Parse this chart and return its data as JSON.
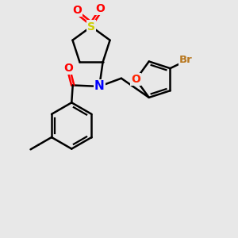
{
  "bg_color": "#e8e8e8",
  "atom_colors": {
    "S": "#cccc00",
    "O": "#ff0000",
    "N": "#0000ff",
    "Br": "#b87820",
    "C": "#000000",
    "O_furan": "#ff2200"
  },
  "bond_color": "#000000",
  "figsize": [
    3.0,
    3.0
  ],
  "dpi": 100
}
